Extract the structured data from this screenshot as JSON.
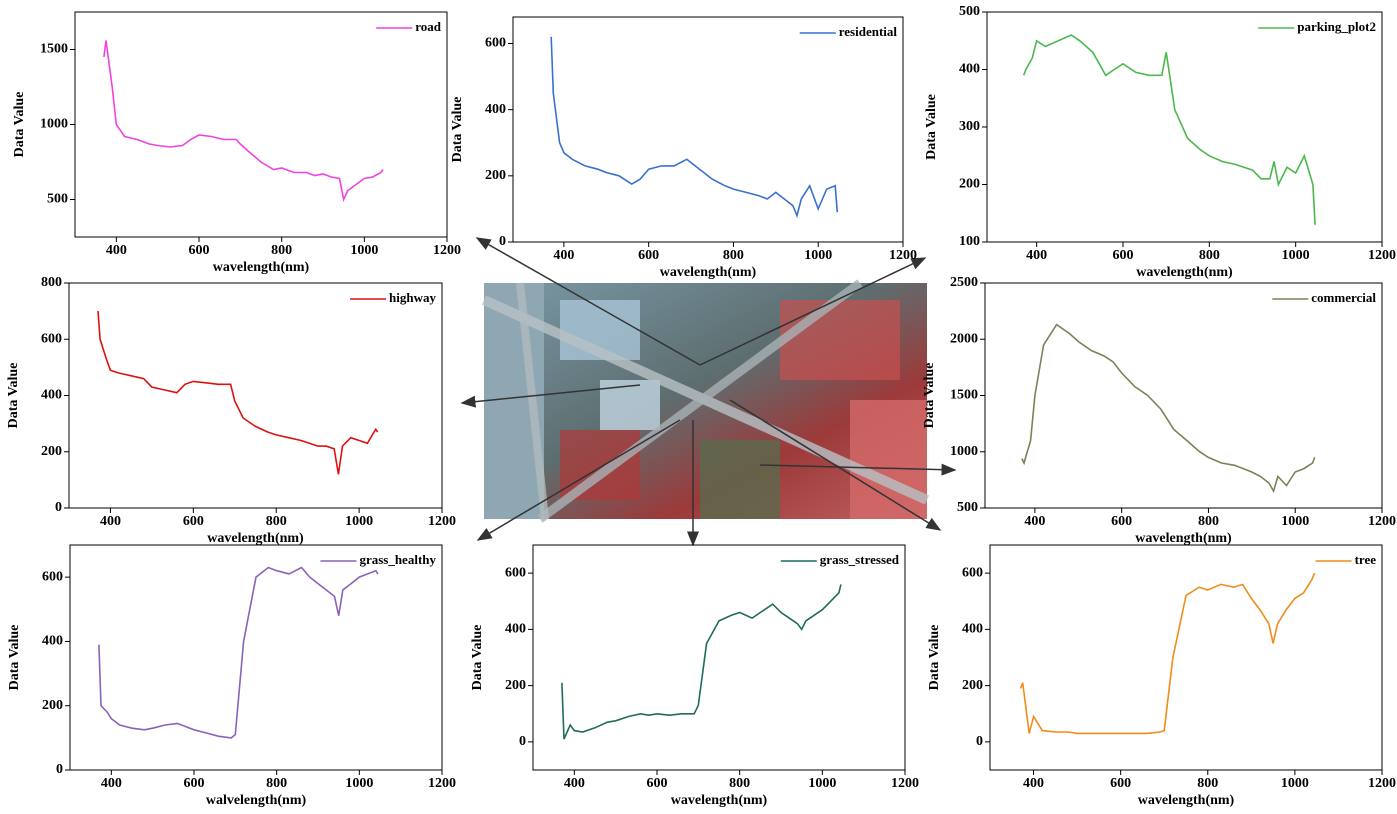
{
  "chart_data": [
    {
      "type": "line",
      "xlabel": "wavelength(nm)",
      "ylabel": "Data Value",
      "legend": "upper right",
      "x": [
        370,
        375,
        390,
        400,
        420,
        450,
        480,
        500,
        530,
        560,
        580,
        600,
        630,
        660,
        690,
        700,
        720,
        750,
        780,
        800,
        830,
        860,
        880,
        900,
        920,
        940,
        950,
        960,
        980,
        1000,
        1020,
        1040,
        1045
      ],
      "series": [
        {
          "name": "road",
          "color": "#ee44dd",
          "values": [
            1450,
            1560,
            1250,
            1000,
            920,
            900,
            870,
            860,
            850,
            860,
            900,
            930,
            920,
            900,
            900,
            870,
            820,
            750,
            700,
            710,
            680,
            680,
            660,
            670,
            650,
            640,
            500,
            560,
            600,
            640,
            650,
            680,
            700
          ]
        }
      ],
      "xlim": [
        300,
        1200
      ],
      "ylim": [
        250,
        1750
      ],
      "xticks": [
        400,
        600,
        800,
        1000,
        1200
      ],
      "yticks": [
        500,
        1000,
        1500
      ]
    },
    {
      "type": "line",
      "xlabel": "wavelength(nm)",
      "ylabel": "Data Value",
      "legend": "upper right",
      "x": [
        370,
        375,
        390,
        400,
        420,
        450,
        480,
        500,
        530,
        560,
        580,
        600,
        630,
        660,
        690,
        700,
        720,
        750,
        780,
        800,
        830,
        860,
        880,
        900,
        920,
        940,
        950,
        960,
        980,
        1000,
        1020,
        1040,
        1045
      ],
      "series": [
        {
          "name": "residential",
          "color": "#3a70d0",
          "values": [
            620,
            450,
            300,
            270,
            250,
            230,
            220,
            210,
            200,
            175,
            190,
            220,
            230,
            230,
            250,
            240,
            220,
            190,
            170,
            160,
            150,
            140,
            130,
            150,
            130,
            110,
            80,
            130,
            170,
            100,
            160,
            170,
            90
          ]
        }
      ],
      "xlim": [
        280,
        1200
      ],
      "ylim": [
        0,
        680
      ],
      "xticks": [
        400,
        600,
        800,
        1000,
        1200
      ],
      "yticks": [
        0,
        200,
        400,
        600
      ]
    },
    {
      "type": "line",
      "xlabel": "wavelength(nm)",
      "ylabel": "Data Value",
      "legend": "upper right",
      "x": [
        370,
        375,
        390,
        400,
        420,
        450,
        480,
        500,
        530,
        560,
        580,
        600,
        630,
        660,
        690,
        700,
        720,
        750,
        780,
        800,
        830,
        860,
        880,
        900,
        920,
        940,
        950,
        960,
        980,
        1000,
        1020,
        1040,
        1045
      ],
      "series": [
        {
          "name": "parking_plot2",
          "color": "#4cb84c",
          "values": [
            390,
            400,
            420,
            450,
            440,
            450,
            460,
            450,
            430,
            390,
            400,
            410,
            395,
            390,
            390,
            430,
            330,
            280,
            260,
            250,
            240,
            235,
            230,
            225,
            210,
            210,
            240,
            200,
            230,
            220,
            250,
            200,
            130
          ]
        }
      ],
      "xlim": [
        285,
        1200
      ],
      "ylim": [
        100,
        500
      ],
      "xticks": [
        400,
        600,
        800,
        1000,
        1200
      ],
      "yticks": [
        100,
        200,
        300,
        400,
        500
      ]
    },
    {
      "type": "line",
      "xlabel": "wavelength(nm)",
      "ylabel": "Data Value",
      "legend": "upper right",
      "x": [
        370,
        375,
        390,
        400,
        420,
        450,
        480,
        500,
        530,
        560,
        580,
        600,
        630,
        660,
        690,
        700,
        720,
        750,
        780,
        800,
        830,
        860,
        880,
        900,
        920,
        940,
        950,
        960,
        980,
        1000,
        1020,
        1040,
        1045
      ],
      "series": [
        {
          "name": "highway",
          "color": "#dd1111",
          "values": [
            700,
            600,
            530,
            490,
            480,
            470,
            460,
            430,
            420,
            410,
            440,
            450,
            445,
            440,
            440,
            380,
            320,
            290,
            270,
            260,
            250,
            240,
            230,
            220,
            220,
            210,
            120,
            220,
            250,
            240,
            230,
            280,
            270
          ]
        }
      ],
      "xlim": [
        300,
        1200
      ],
      "ylim": [
        0,
        800
      ],
      "xticks": [
        400,
        600,
        800,
        1000,
        1200
      ],
      "yticks": [
        0,
        200,
        400,
        600,
        800
      ]
    },
    {
      "type": "line",
      "xlabel": "wavelength(nm)",
      "ylabel": "Data Value",
      "legend": "upper right",
      "x": [
        370,
        375,
        390,
        400,
        420,
        450,
        480,
        500,
        530,
        560,
        580,
        600,
        630,
        660,
        690,
        700,
        720,
        750,
        780,
        800,
        830,
        860,
        880,
        900,
        920,
        940,
        950,
        960,
        980,
        1000,
        1020,
        1040,
        1045
      ],
      "series": [
        {
          "name": "commercial",
          "color": "#7d8058",
          "values": [
            940,
            900,
            1100,
            1500,
            1950,
            2130,
            2050,
            1980,
            1900,
            1850,
            1800,
            1700,
            1580,
            1500,
            1380,
            1320,
            1200,
            1100,
            1000,
            950,
            900,
            880,
            850,
            820,
            780,
            720,
            650,
            780,
            700,
            820,
            850,
            900,
            950
          ]
        }
      ],
      "xlim": [
        285,
        1200
      ],
      "ylim": [
        500,
        2500
      ],
      "xticks": [
        400,
        600,
        800,
        1000,
        1200
      ],
      "yticks": [
        500,
        1000,
        1500,
        2000,
        2500
      ]
    },
    {
      "type": "line",
      "xlabel": "walvelength(nm)",
      "ylabel": "Data Value",
      "legend": "upper right",
      "x": [
        370,
        375,
        390,
        400,
        420,
        450,
        480,
        500,
        530,
        560,
        580,
        600,
        630,
        660,
        690,
        700,
        720,
        750,
        780,
        800,
        830,
        860,
        880,
        900,
        920,
        940,
        950,
        960,
        980,
        1000,
        1020,
        1040,
        1045
      ],
      "series": [
        {
          "name": "grass_healthy",
          "color": "#8a62b8",
          "values": [
            390,
            200,
            180,
            160,
            140,
            130,
            125,
            130,
            140,
            145,
            135,
            125,
            115,
            105,
            100,
            110,
            400,
            600,
            630,
            620,
            610,
            630,
            600,
            580,
            560,
            540,
            480,
            560,
            580,
            600,
            610,
            620,
            610
          ]
        }
      ],
      "xlim": [
        300,
        1200
      ],
      "ylim": [
        0,
        700
      ],
      "xticks": [
        400,
        600,
        800,
        1000,
        1200
      ],
      "yticks": [
        0,
        200,
        400,
        600
      ]
    },
    {
      "type": "line",
      "xlabel": "wavelength(nm)",
      "ylabel": "Data Value",
      "legend": "upper right",
      "x": [
        370,
        375,
        390,
        400,
        420,
        450,
        480,
        500,
        530,
        560,
        580,
        600,
        630,
        660,
        690,
        700,
        720,
        750,
        780,
        800,
        830,
        860,
        880,
        900,
        920,
        940,
        950,
        960,
        980,
        1000,
        1020,
        1040,
        1045
      ],
      "series": [
        {
          "name": "grass_stressed",
          "color": "#1f6b5e",
          "values": [
            210,
            10,
            60,
            40,
            35,
            50,
            70,
            75,
            90,
            100,
            95,
            100,
            95,
            100,
            100,
            130,
            350,
            430,
            450,
            460,
            440,
            470,
            490,
            460,
            440,
            420,
            400,
            430,
            450,
            470,
            500,
            530,
            560
          ]
        }
      ],
      "xlim": [
        300,
        1200
      ],
      "ylim": [
        -100,
        700
      ],
      "xticks": [
        400,
        600,
        800,
        1000,
        1200
      ],
      "yticks": [
        0,
        200,
        400,
        600
      ]
    },
    {
      "type": "line",
      "xlabel": "wavelength(nm)",
      "ylabel": "Data Value",
      "legend": "upper right",
      "x": [
        370,
        375,
        390,
        400,
        420,
        450,
        480,
        500,
        530,
        560,
        580,
        600,
        630,
        660,
        690,
        700,
        720,
        750,
        780,
        800,
        830,
        860,
        880,
        900,
        920,
        940,
        950,
        960,
        980,
        1000,
        1020,
        1040,
        1045
      ],
      "series": [
        {
          "name": "tree",
          "color": "#f08c1c",
          "values": [
            190,
            210,
            30,
            90,
            40,
            35,
            35,
            30,
            30,
            30,
            30,
            30,
            30,
            30,
            35,
            40,
            300,
            520,
            550,
            540,
            560,
            550,
            560,
            510,
            470,
            420,
            350,
            420,
            470,
            510,
            530,
            580,
            600
          ]
        }
      ],
      "xlim": [
        300,
        1200
      ],
      "ylim": [
        -100,
        700
      ],
      "xticks": [
        400,
        600,
        800,
        1000,
        1200
      ],
      "yticks": [
        0,
        200,
        400,
        600
      ]
    }
  ]
}
